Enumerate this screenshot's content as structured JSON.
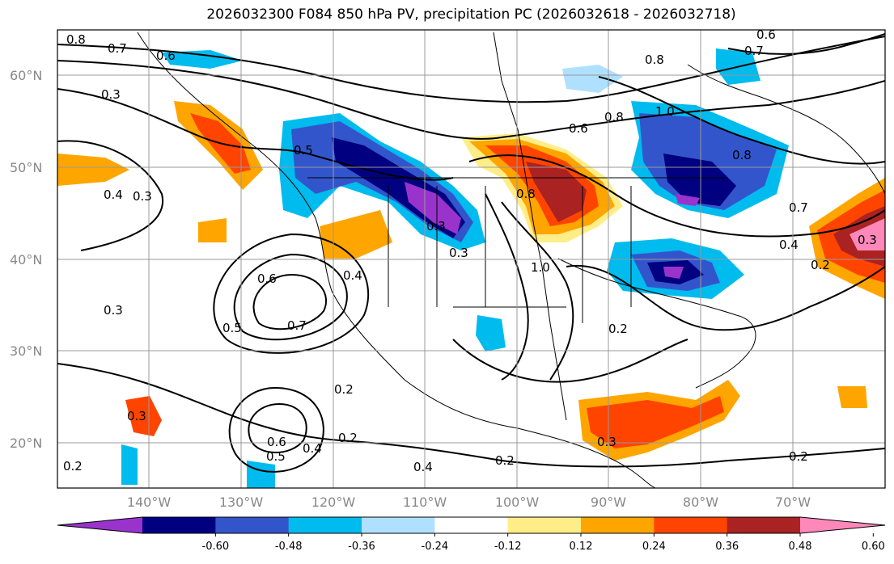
{
  "title": "2026032300 F084 850 hPa PV, precipitation PC (2026032618 - 2026032718)",
  "lat_labels": [
    "60°N",
    "50°N",
    "40°N",
    "30°N",
    "20°N"
  ],
  "lon_labels": [
    "140°W",
    "130°W",
    "120°W",
    "110°W",
    "100°W",
    "90°W",
    "80°W",
    "70°W"
  ],
  "colorbar": {
    "colors": [
      "#9933cc",
      "#000080",
      "#3355cc",
      "#00bbee",
      "#b0e0ff",
      "#ffffff",
      "#ffee88",
      "#ffa500",
      "#ff4400",
      "#aa2222",
      "#ff88bb"
    ],
    "ticks": [
      "-0.60",
      "-0.48",
      "-0.36",
      "-0.24",
      "-0.12",
      "0.12",
      "0.24",
      "0.36",
      "0.48",
      "0.60"
    ]
  },
  "contour_labels": [
    "0.8",
    "0.7",
    "0.6",
    "0.3",
    "0.4",
    "0.3",
    "0.5",
    "0.6",
    "0.5",
    "0.7",
    "0.4",
    "0.3",
    "0.2",
    "0.6",
    "0.5",
    "0.4",
    "0.2",
    "0.4",
    "0.2",
    "0.3",
    "0.3",
    "0.8",
    "1.0",
    "0.8",
    "0.6",
    "1.0",
    "0.8",
    "0.7",
    "0.4",
    "0.2",
    "0.3",
    "0.2",
    "0.2",
    "0.8",
    "0.7",
    "0.6",
    "0.3",
    "0.2",
    "0.3"
  ]
}
